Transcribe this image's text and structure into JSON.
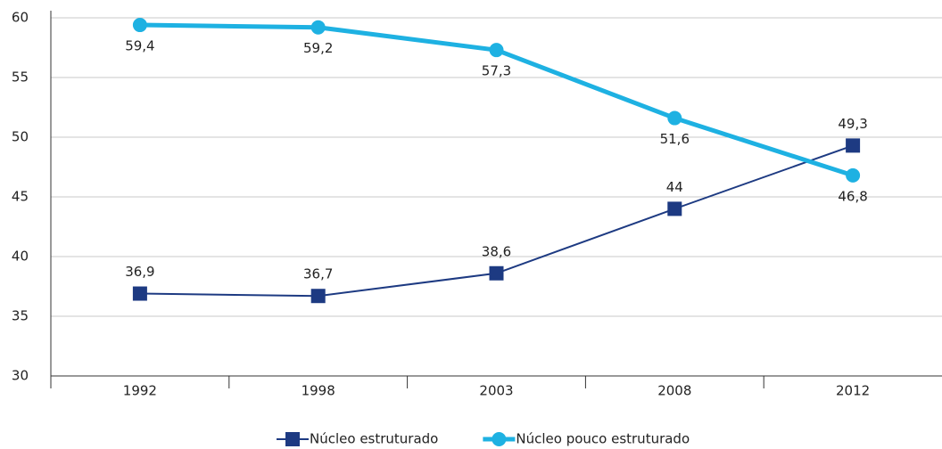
{
  "chart_data": {
    "type": "line",
    "categories": [
      "1992",
      "1998",
      "2003",
      "2008",
      "2012"
    ],
    "series": [
      {
        "name": "Núcleo estruturado",
        "color": "#1d3a82",
        "marker": "square",
        "values": [
          36.9,
          36.7,
          38.6,
          44,
          49.3
        ],
        "value_labels": [
          "36,9",
          "36,7",
          "38,6",
          "44",
          "49,3"
        ]
      },
      {
        "name": "Núcleo pouco estruturado",
        "color": "#1eb1e2",
        "marker": "circle",
        "values": [
          59.4,
          59.2,
          57.3,
          51.6,
          46.8
        ],
        "value_labels": [
          "59,4",
          "59,2",
          "57,3",
          "51,6",
          "46,8"
        ]
      }
    ],
    "ylim": [
      30,
      60
    ],
    "yticks": [
      30,
      35,
      40,
      45,
      50,
      55,
      60
    ],
    "grid": true
  }
}
